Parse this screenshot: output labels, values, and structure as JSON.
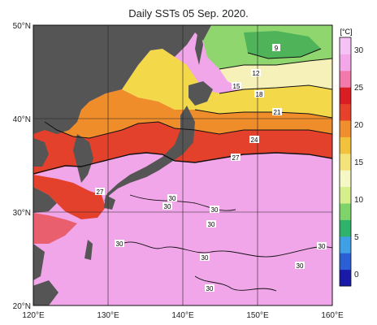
{
  "title": "Daily SSTs 05 Sep. 2020.",
  "colorbar": {
    "unit_label": "[°C]",
    "ticks": [
      "30",
      "25",
      "20",
      "15",
      "10",
      "5",
      "0"
    ],
    "colors": [
      "#1a1aa8",
      "#2b5fd6",
      "#3fa0e6",
      "#2fb36a",
      "#7ed36b",
      "#d6ef8a",
      "#f5f7c4",
      "#f3e37a",
      "#f2c23c",
      "#ef8f2d",
      "#e6422b",
      "#d81e22",
      "#f27aaa",
      "#f4a7e8",
      "#f5c2f5"
    ]
  },
  "axes": {
    "lat_labels": [
      "50°N",
      "40°N",
      "30°N",
      "20°N"
    ],
    "lon_labels": [
      "120°E",
      "130°E",
      "140°E",
      "150°E",
      "160°E"
    ]
  },
  "contour_labels": {
    "l9": "9",
    "l12": "12",
    "l15": "15",
    "l18": "18",
    "l21": "21",
    "l24": "24",
    "l27a": "27",
    "l27b": "27",
    "l30": [
      "30",
      "30",
      "30",
      "30",
      "30",
      "30",
      "30",
      "30",
      "30"
    ]
  },
  "colors": {
    "land": "#555555",
    "warm_pink": "#f0a3e8",
    "red": "#e23a2a",
    "orange": "#f08a2a",
    "yellow": "#f3e05a",
    "green": "#8fd66e"
  }
}
